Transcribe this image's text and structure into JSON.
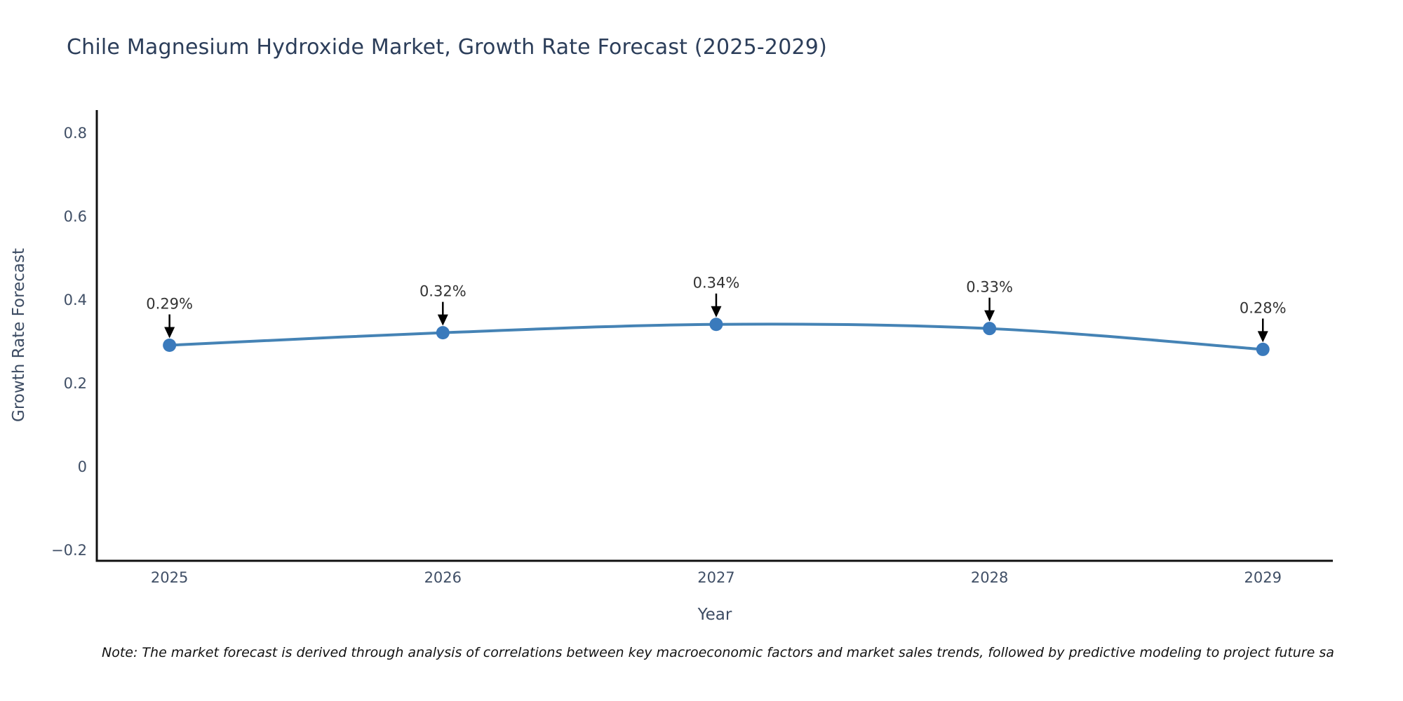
{
  "title": "Chile Magnesium Hydroxide Market, Growth Rate Forecast (2025-2029)",
  "note": "Note: The market forecast is derived through analysis of correlations between key macroeconomic factors and market sales trends, followed by predictive modeling to project future sa",
  "chart_data": {
    "type": "line",
    "title": "Chile Magnesium Hydroxide Market, Growth Rate Forecast (2025-2029)",
    "xlabel": "Year",
    "ylabel": "Growth Rate Forecast",
    "x": [
      2025,
      2026,
      2027,
      2028,
      2029
    ],
    "series": [
      {
        "name": "Growth Rate Forecast",
        "values": [
          0.29,
          0.32,
          0.34,
          0.33,
          0.28
        ]
      }
    ],
    "point_labels": [
      "0.29%",
      "0.32%",
      "0.34%",
      "0.33%",
      "0.28%"
    ],
    "xticks": [
      2025,
      2026,
      2027,
      2028,
      2029
    ],
    "xtick_labels": [
      "2025",
      "2026",
      "2027",
      "2028",
      "2029"
    ],
    "yticks": [
      -0.2,
      0,
      0.2,
      0.4,
      0.6,
      0.8
    ],
    "ytick_labels": [
      "−0.2",
      "0",
      "0.2",
      "0.4",
      "0.6",
      "0.8"
    ],
    "xlim": [
      2024.734,
      2029.256
    ],
    "ylim": [
      -0.227,
      0.854
    ],
    "grid": false,
    "legend": "none",
    "line_shape": "spline",
    "annotations_have_arrows": true,
    "colors": {
      "line": "#4583b5",
      "marker": "#3a7abc",
      "axis": "#111111",
      "title_text": "#2c3e5a",
      "axis_title_text": "#3d4c63",
      "tick_text": "#404f66",
      "annotation_text": "#333333",
      "arrow": "#000000",
      "background": "#ffffff"
    }
  }
}
